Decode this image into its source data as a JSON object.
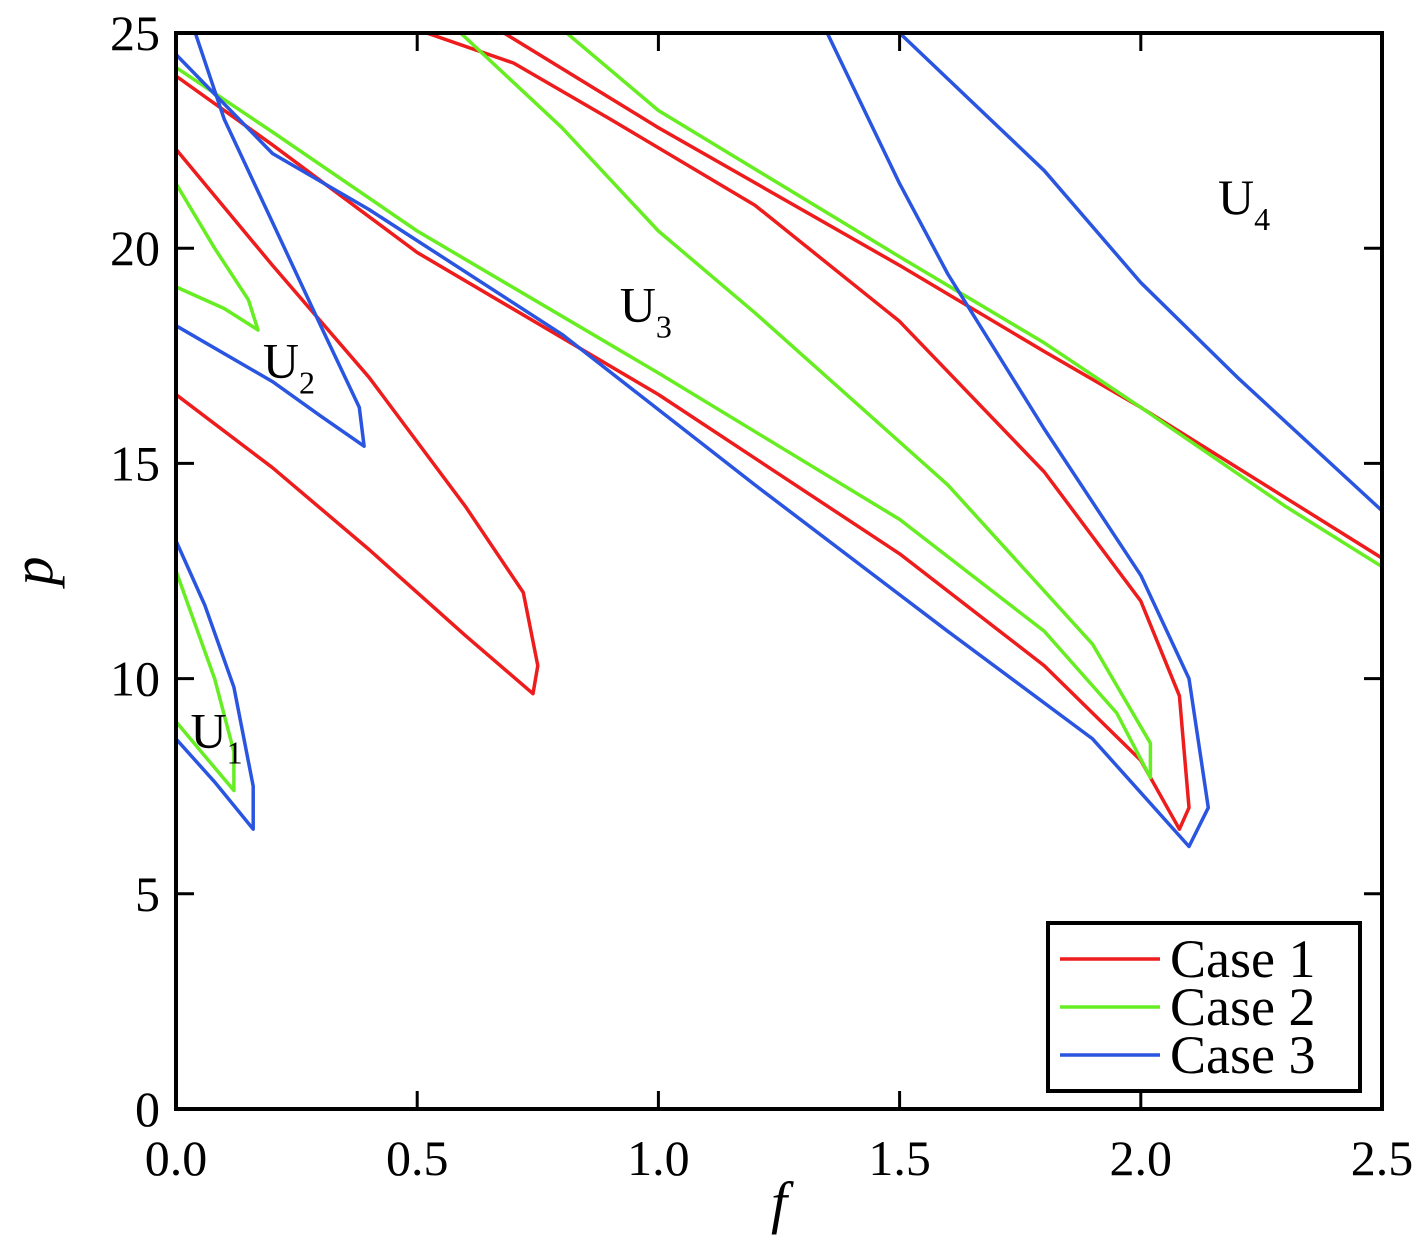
{
  "chart_data": {
    "type": "line",
    "xlabel": "f",
    "ylabel": "p",
    "xlim": [
      0,
      2.5
    ],
    "ylim": [
      0,
      25
    ],
    "xticks": [
      "0.0",
      "0.5",
      "1.0",
      "1.5",
      "2.0",
      "2.5"
    ],
    "yticks": [
      "0",
      "5",
      "10",
      "15",
      "20",
      "25"
    ],
    "legend": {
      "placement": "bottom-right",
      "entries": [
        "Case 1",
        "Case 2",
        "Case 3"
      ]
    },
    "colors": {
      "Case 1": "#ee1c1c",
      "Case 2": "#66ee22",
      "Case 3": "#2a55e0"
    },
    "region_labels": [
      {
        "text": "U",
        "sub": "1",
        "f": 0.03,
        "p": 8.4
      },
      {
        "text": "U",
        "sub": "2",
        "f": 0.18,
        "p": 17.0
      },
      {
        "text": "U",
        "sub": "3",
        "f": 0.92,
        "p": 18.3
      },
      {
        "text": "U",
        "sub": "4",
        "f": 2.16,
        "p": 20.8
      }
    ],
    "series": [
      {
        "name": "Case 1",
        "curves": [
          [
            [
              0.0,
              24.0
            ],
            [
              0.2,
              22.4
            ],
            [
              0.5,
              19.9
            ],
            [
              1.0,
              16.6
            ],
            [
              1.5,
              12.9
            ],
            [
              1.8,
              10.3
            ],
            [
              2.0,
              8.1
            ],
            [
              2.08,
              6.5
            ],
            [
              2.1,
              7.0
            ],
            [
              2.08,
              9.6
            ],
            [
              2.0,
              11.8
            ],
            [
              1.8,
              14.8
            ],
            [
              1.5,
              18.3
            ],
            [
              1.2,
              21.0
            ],
            [
              0.9,
              23.0
            ],
            [
              0.7,
              24.3
            ],
            [
              0.52,
              25.0
            ]
          ],
          [
            [
              0.0,
              16.6
            ],
            [
              0.2,
              14.9
            ],
            [
              0.4,
              13.0
            ],
            [
              0.6,
              11.0
            ],
            [
              0.74,
              9.65
            ],
            [
              0.75,
              10.3
            ],
            [
              0.72,
              12.0
            ],
            [
              0.6,
              14.0
            ],
            [
              0.4,
              17.0
            ],
            [
              0.2,
              19.6
            ],
            [
              0.0,
              22.3
            ]
          ],
          [
            [
              0.68,
              25.0
            ],
            [
              1.0,
              22.8
            ],
            [
              1.5,
              19.6
            ],
            [
              1.8,
              17.6
            ],
            [
              2.0,
              16.3
            ],
            [
              2.3,
              14.2
            ],
            [
              2.5,
              12.8
            ]
          ]
        ]
      },
      {
        "name": "Case 2",
        "curves": [
          [
            [
              0.0,
              24.2
            ],
            [
              0.2,
              22.7
            ],
            [
              0.5,
              20.4
            ],
            [
              1.0,
              17.1
            ],
            [
              1.5,
              13.7
            ],
            [
              1.8,
              11.1
            ],
            [
              1.95,
              9.2
            ],
            [
              2.02,
              7.7
            ],
            [
              2.02,
              8.5
            ],
            [
              1.9,
              10.8
            ],
            [
              1.6,
              14.5
            ],
            [
              1.2,
              18.5
            ],
            [
              1.0,
              20.4
            ],
            [
              0.8,
              22.8
            ],
            [
              0.59,
              25.0
            ]
          ],
          [
            [
              0.0,
              19.1
            ],
            [
              0.1,
              18.6
            ],
            [
              0.17,
              18.1
            ],
            [
              0.15,
              18.8
            ],
            [
              0.08,
              20.0
            ],
            [
              0.0,
              21.5
            ]
          ],
          [
            [
              0.0,
              9.0
            ],
            [
              0.06,
              8.2
            ],
            [
              0.12,
              7.4
            ],
            [
              0.12,
              8.3
            ],
            [
              0.08,
              10.0
            ],
            [
              0.0,
              12.5
            ]
          ],
          [
            [
              0.81,
              25.0
            ],
            [
              1.0,
              23.2
            ],
            [
              1.5,
              19.8
            ],
            [
              1.8,
              17.8
            ],
            [
              2.0,
              16.3
            ],
            [
              2.3,
              14.0
            ],
            [
              2.5,
              12.6
            ]
          ]
        ]
      },
      {
        "name": "Case 3",
        "curves": [
          [
            [
              0.0,
              18.2
            ],
            [
              0.2,
              16.9
            ],
            [
              0.3,
              16.1
            ],
            [
              0.39,
              15.4
            ],
            [
              0.38,
              16.3
            ],
            [
              0.3,
              18.2
            ],
            [
              0.2,
              20.6
            ],
            [
              0.1,
              23.0
            ],
            [
              0.04,
              25.0
            ]
          ],
          [
            [
              0.0,
              24.5
            ],
            [
              0.2,
              22.2
            ],
            [
              0.4,
              20.9
            ],
            [
              0.8,
              18.0
            ],
            [
              1.2,
              14.5
            ],
            [
              1.6,
              11.1
            ],
            [
              1.9,
              8.6
            ],
            [
              2.1,
              6.1
            ],
            [
              2.14,
              7.0
            ],
            [
              2.1,
              10.0
            ],
            [
              2.0,
              12.4
            ],
            [
              1.8,
              15.8
            ],
            [
              1.6,
              19.4
            ],
            [
              1.5,
              21.5
            ],
            [
              1.35,
              25.0
            ]
          ],
          [
            [
              1.5,
              25.0
            ],
            [
              1.8,
              21.8
            ],
            [
              2.0,
              19.2
            ],
            [
              2.2,
              17.0
            ],
            [
              2.5,
              13.9
            ]
          ],
          [
            [
              0.0,
              8.6
            ],
            [
              0.08,
              7.6
            ],
            [
              0.16,
              6.5
            ],
            [
              0.16,
              7.5
            ],
            [
              0.12,
              9.8
            ],
            [
              0.06,
              11.7
            ],
            [
              0.0,
              13.2
            ]
          ]
        ]
      }
    ]
  }
}
